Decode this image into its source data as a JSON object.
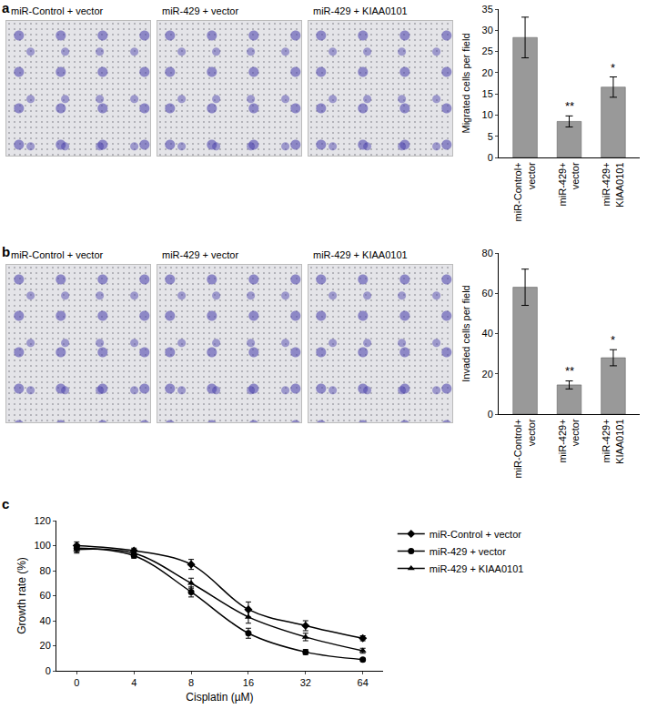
{
  "panels": [
    {
      "label": "a",
      "image_captions": [
        "miR-Control + vector",
        "miR-429 + vector",
        "miR-429 + KIAA0101"
      ]
    },
    {
      "label": "b",
      "image_captions": [
        "miR-Control + vector",
        "miR-429 + vector",
        "miR-429 + KIAA0101"
      ]
    },
    {
      "label": "c"
    }
  ],
  "chart_data": [
    {
      "type": "bar",
      "categories": [
        "miR-Control+ vector",
        "miR-429+ vector",
        "miR-429+ KIAA0101"
      ],
      "values": [
        28.3,
        8.5,
        16.6
      ],
      "errors": [
        4.8,
        1.3,
        2.4
      ],
      "color": "#999999",
      "ylabel": "Migrated cells per field",
      "ylim": [
        0,
        35
      ],
      "yticks": [
        0,
        5,
        10,
        15,
        20,
        25,
        30,
        35
      ],
      "annotations": [
        {
          "category": "miR-429+ vector",
          "text": "**"
        },
        {
          "category": "miR-429+ KIAA0101",
          "text": "*"
        }
      ]
    },
    {
      "type": "bar",
      "categories": [
        "miR-Control+ vector",
        "miR-429+ vector",
        "miR-429+ KIAA0101"
      ],
      "values": [
        63,
        14.5,
        28
      ],
      "errors": [
        9,
        2,
        4
      ],
      "color": "#999999",
      "ylabel": "Invaded cells per field",
      "ylim": [
        0,
        80
      ],
      "yticks": [
        0,
        20,
        40,
        60,
        80
      ],
      "annotations": [
        {
          "category": "miR-429+ vector",
          "text": "**"
        },
        {
          "category": "miR-429+ KIAA0101",
          "text": "*"
        }
      ]
    },
    {
      "type": "line",
      "categories": [
        "0",
        "4",
        "8",
        "16",
        "32",
        "64"
      ],
      "xlabel": "Cisplatin (µM)",
      "ylabel": "Growth rate (%)",
      "ylim": [
        0,
        120
      ],
      "yticks": [
        0,
        20,
        40,
        60,
        80,
        100,
        120
      ],
      "legend": "right",
      "series": [
        {
          "name": "miR-Control + vector",
          "color": "#000000",
          "marker": "diamond",
          "line_style": "solid",
          "values": [
            100,
            96,
            85,
            49,
            36,
            26
          ],
          "errors": [
            3,
            2,
            4,
            6,
            4,
            2
          ]
        },
        {
          "name": "miR-429 + vector",
          "color": "#000000",
          "marker": "circle",
          "line_style": "solid",
          "values": [
            98,
            92,
            63,
            30,
            15,
            9
          ],
          "errors": [
            3,
            2,
            4,
            4,
            2,
            1
          ]
        },
        {
          "name": "miR-429 + KIAA0101",
          "color": "#000000",
          "marker": "triangle-up",
          "line_style": "solid",
          "values": [
            97,
            94,
            70,
            43,
            27,
            16
          ],
          "errors": [
            3,
            2,
            4,
            5,
            3,
            2
          ]
        }
      ]
    }
  ]
}
